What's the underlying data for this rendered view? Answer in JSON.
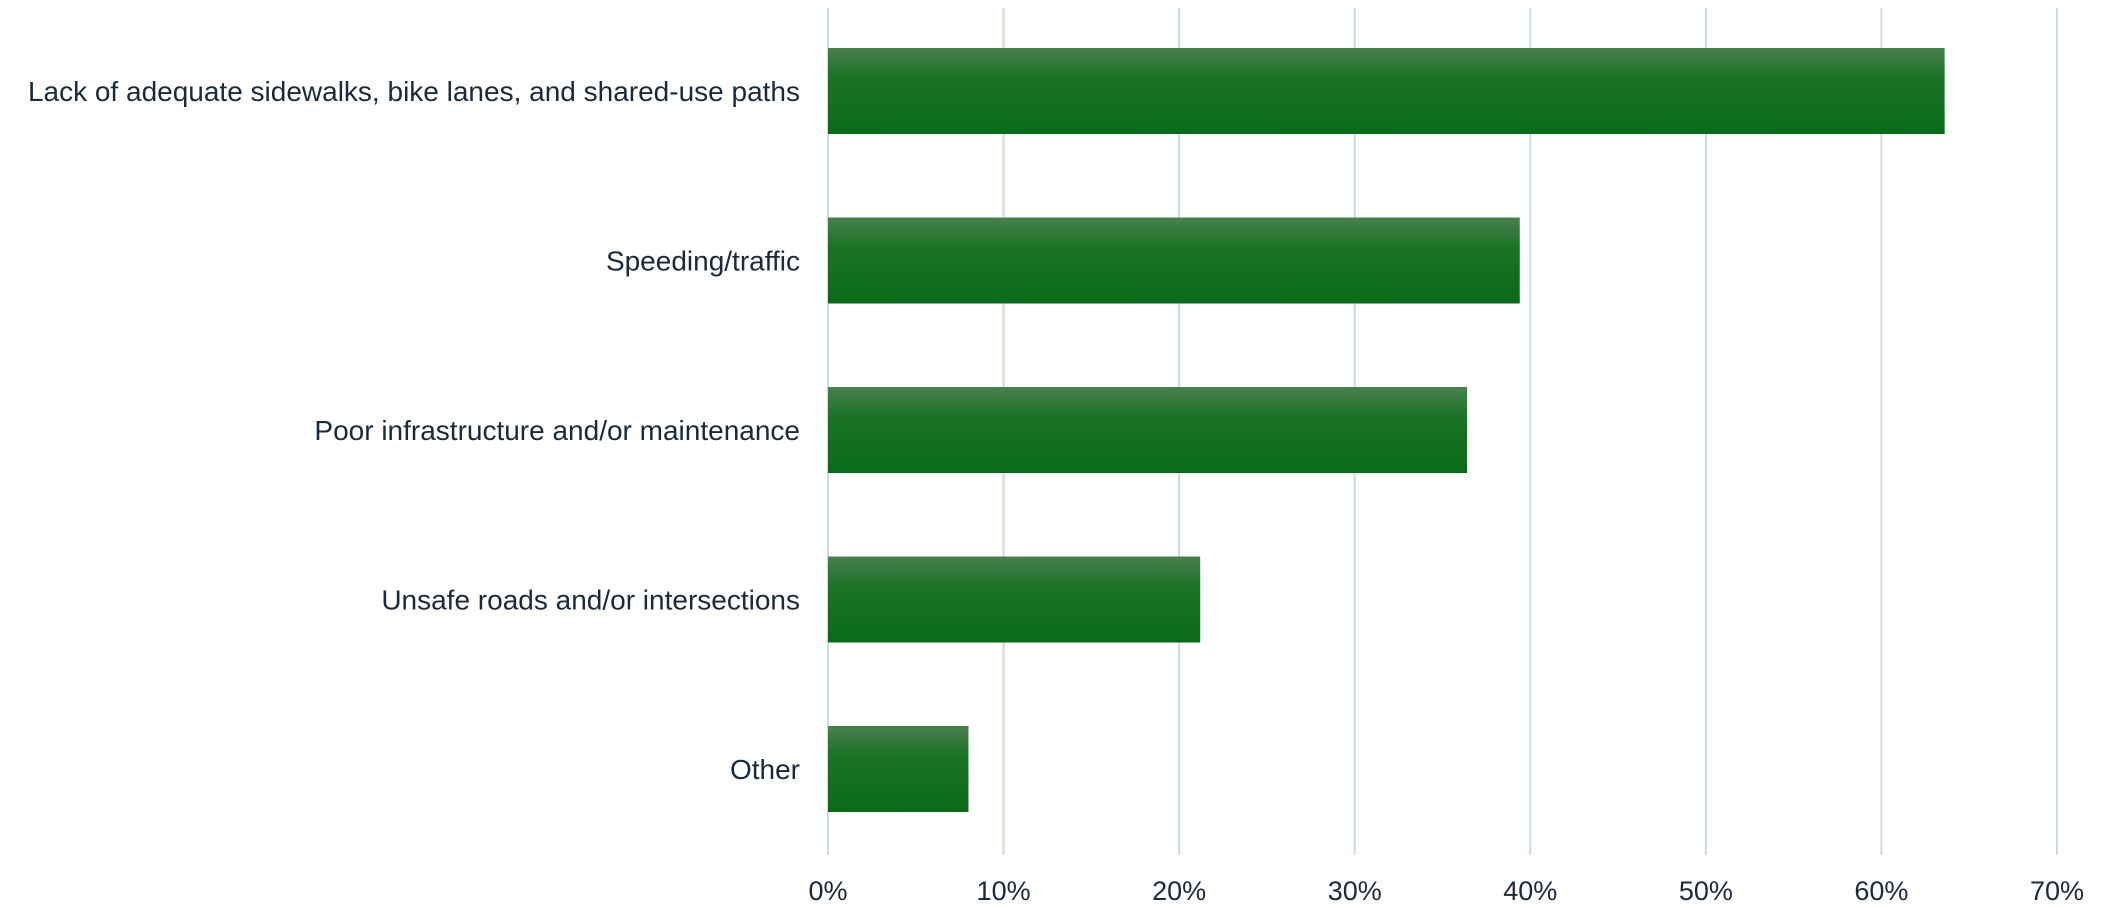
{
  "chart_data": {
    "type": "bar",
    "orientation": "horizontal",
    "categories": [
      "Lack of adequate sidewalks, bike lanes, and shared-use paths",
      "Speeding/traffic",
      "Poor infrastructure and/or maintenance",
      "Unsafe roads and/or intersections",
      "Other"
    ],
    "values": [
      63.6,
      39.4,
      36.4,
      21.2,
      8.0
    ],
    "xlim": [
      0,
      70
    ],
    "x_ticks": [
      "0%",
      "10%",
      "20%",
      "30%",
      "40%",
      "50%",
      "60%",
      "70%"
    ],
    "title": "",
    "xlabel": "",
    "ylabel": "",
    "grid": "vertical",
    "legend": "none",
    "colors": {
      "bar_top": "#4a7f4f",
      "bar_bottom": "#0a6a1a",
      "grid": "#c8daee",
      "text": "#1b2a3a"
    }
  }
}
